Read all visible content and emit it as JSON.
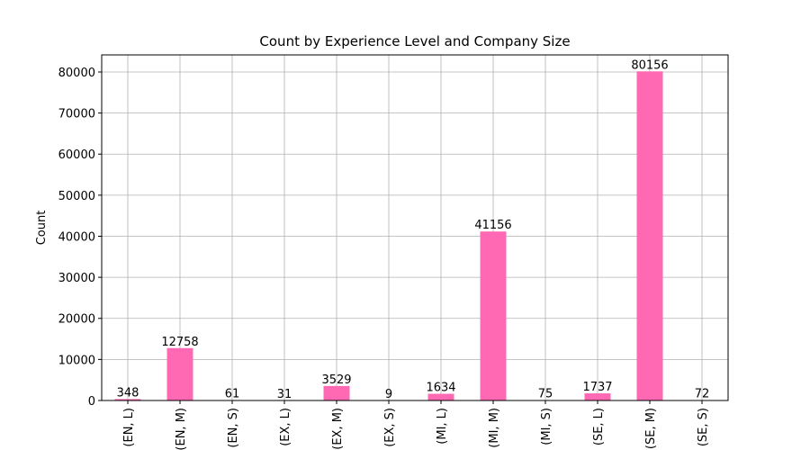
{
  "chart_data": {
    "type": "bar",
    "title": "Count by Experience Level and Company Size",
    "xlabel": "",
    "ylabel": "Count",
    "categories": [
      "(EN, L)",
      "(EN, M)",
      "(EN, S)",
      "(EX, L)",
      "(EX, M)",
      "(EX, S)",
      "(MI, L)",
      "(MI, M)",
      "(MI, S)",
      "(SE, L)",
      "(SE, M)",
      "(SE, S)"
    ],
    "values": [
      348,
      12758,
      61,
      31,
      3529,
      9,
      1634,
      41156,
      75,
      1737,
      80156,
      72
    ],
    "ylim": [
      0,
      84164
    ],
    "yticks": [
      0,
      10000,
      20000,
      30000,
      40000,
      50000,
      60000,
      70000,
      80000
    ],
    "grid": true,
    "bar_color": "#ff69b4",
    "data_labels": true
  }
}
